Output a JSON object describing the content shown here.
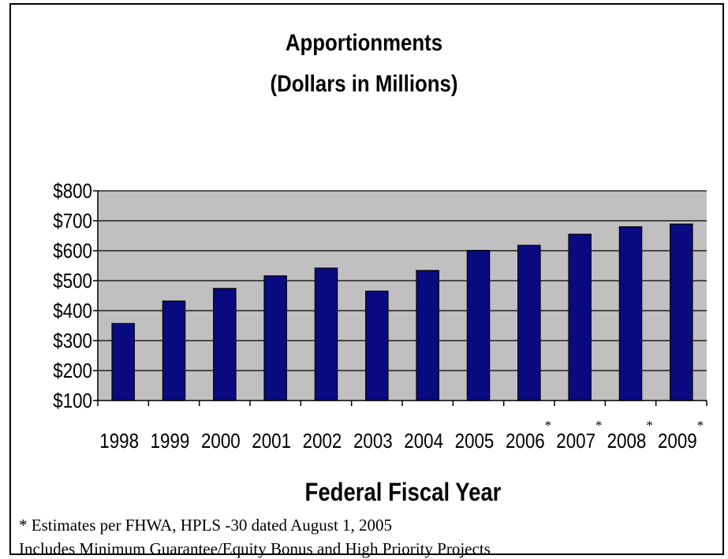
{
  "chart_data": {
    "type": "bar",
    "title": "Apportionments",
    "subtitle": "(Dollars in Millions)",
    "xlabel": "Federal Fiscal Year",
    "ylabel": "",
    "categories": [
      "1998",
      "1999",
      "2000",
      "2001",
      "2002",
      "2003",
      "2004",
      "2005",
      "2006",
      "2007",
      "2008",
      "2009"
    ],
    "estimate_marker": "*",
    "estimated": [
      false,
      false,
      false,
      false,
      false,
      false,
      false,
      false,
      true,
      true,
      true,
      true
    ],
    "values": [
      357,
      432,
      474,
      516,
      542,
      465,
      534,
      601,
      618,
      655,
      680,
      689
    ],
    "ylim": [
      100,
      800
    ],
    "yticks": [
      100,
      200,
      300,
      400,
      500,
      600,
      700,
      800
    ],
    "ytick_labels": [
      "$100",
      "$200",
      "$300",
      "$400",
      "$500",
      "$600",
      "$700",
      "$800"
    ],
    "grid": true,
    "colors": {
      "bar": "#0a0a80",
      "plot_background": "#c0c0c0",
      "grid": "#000000"
    }
  },
  "footnotes": {
    "line1": "* Estimates per FHWA, HPLS -30 dated August 1, 2005",
    "line2": "Includes Minimum Guarantee/Equity Bonus and High Priority Projects"
  }
}
